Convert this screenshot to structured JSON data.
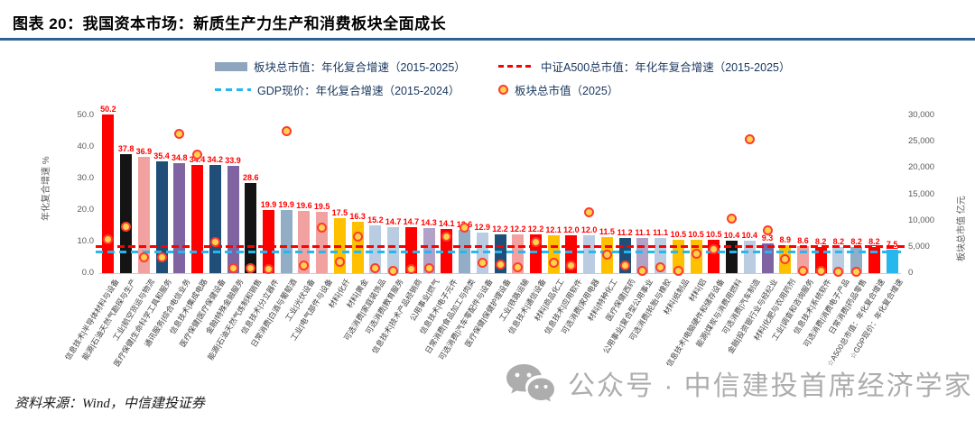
{
  "header": {
    "title": "图表 20：我国资本市场：新质生产力生产和消费板块全面成长"
  },
  "legend": {
    "items": [
      {
        "swatch": "bar",
        "label": "板块总市值：年化复合增速（2015-2025）"
      },
      {
        "swatch": "red-dash",
        "label": "中证A500总市值：年化年复合增速（2015-2025）"
      },
      {
        "swatch": "blue-dash",
        "label": "GDP现价：年化复合增速（2015-2024）"
      },
      {
        "swatch": "dot",
        "label": "板块总市值（2025）"
      }
    ]
  },
  "palette": {
    "信息技术": "#FE0000",
    "能源": "#141414",
    "工业": "#F2A1A1",
    "医疗保健": "#1F4E79",
    "通讯服务": "#8064A2",
    "金融": "#8064A2",
    "日常消费": "#92AEC6",
    "可选消费": "#B9CCE2",
    "材料": "#FFC000",
    "公用事业": "#B3A2C7",
    "A500": "#FE0000",
    "GDP": "#27B7EF"
  },
  "chart_data": {
    "type": "bar",
    "title": "我国资本市场：新质生产力生产和消费板块全面成长",
    "left_axis": {
      "label": "年化复合增速 %",
      "ticks": [
        "0.0",
        "10.0",
        "20.0",
        "30.0",
        "40.0",
        "50.0"
      ],
      "min": 0,
      "max": 50,
      "grid": false
    },
    "right_axis": {
      "label": "板块总市值 亿元",
      "ticks": [
        "0",
        "5,000",
        "10,000",
        "15,000",
        "20,000",
        "25,000",
        "30,000"
      ],
      "min": 0,
      "max": 30000
    },
    "reference_lines": [
      {
        "name": "中证A500总市值：年化年复合增速（2015-2025）",
        "value": 8.2,
        "color": "#FE0000",
        "style": "dashed"
      },
      {
        "name": "GDP现价：年化复合增速（2015-2024）",
        "value": 7.5,
        "color": "#27B7EF",
        "style": "dashed"
      }
    ],
    "series_note": "bars = 年化复合增速 %（2015-2025）；dots = 板块总市值（2025，亿元，图中未标数值，为按右轴估读值）",
    "bars": [
      {
        "label": "信息技术|半导体材料与设备",
        "growth": 50.2,
        "sector": "信息技术",
        "cap": 6500
      },
      {
        "label": "能源|石油天然气勘探与生产",
        "growth": 37.8,
        "sector": "能源",
        "cap": 8900
      },
      {
        "label": "工业|航空货运与物流",
        "growth": 36.9,
        "sector": "工业",
        "cap": 3000
      },
      {
        "label": "医疗保健|生命科学工具和服务",
        "growth": 35.4,
        "sector": "医疗保健",
        "cap": 3000
      },
      {
        "label": "通讯服务|综合电信业务",
        "growth": 34.8,
        "sector": "通讯服务",
        "cap": 26500
      },
      {
        "label": "信息技术|集成电路",
        "growth": 34.4,
        "sector": "信息技术",
        "cap": 22500
      },
      {
        "label": "医疗保健|医疗保健设备",
        "growth": 34.2,
        "sector": "医疗保健",
        "cap": 6000
      },
      {
        "label": "金融|特殊金融服务",
        "growth": 33.9,
        "sector": "金融",
        "cap": 1000
      },
      {
        "label": "能源|石油天然气炼制和销售",
        "growth": 28.6,
        "sector": "能源",
        "cap": 1000
      },
      {
        "label": "信息技术|分立器件",
        "growth": 19.9,
        "sector": "信息技术",
        "cap": 700
      },
      {
        "label": "日常消费|白酒与葡萄酒",
        "growth": 19.9,
        "sector": "日常消费",
        "cap": 27000
      },
      {
        "label": "工业|光伏设备",
        "growth": 19.6,
        "sector": "工业",
        "cap": 1400
      },
      {
        "label": "工业|电气部件与设备",
        "growth": 19.5,
        "sector": "工业",
        "cap": 8700
      },
      {
        "label": "材料|化纤",
        "growth": 17.5,
        "sector": "材料",
        "cap": 2200
      },
      {
        "label": "材料|黄金",
        "growth": 16.3,
        "sector": "材料",
        "cap": 7000
      },
      {
        "label": "可选消费|家庭装饰品",
        "growth": 15.2,
        "sector": "可选消费",
        "cap": 1000
      },
      {
        "label": "可选消费|教育服务",
        "growth": 14.7,
        "sector": "可选消费",
        "cap": 500
      },
      {
        "label": "信息技术|技术产品经销商",
        "growth": 14.7,
        "sector": "信息技术",
        "cap": 700
      },
      {
        "label": "公用事业|燃气",
        "growth": 14.3,
        "sector": "公用事业",
        "cap": 900
      },
      {
        "label": "信息技术|电子元件",
        "growth": 14.1,
        "sector": "信息技术",
        "cap": 7000
      },
      {
        "label": "日常消费|食品加工与肉类",
        "growth": 13.6,
        "sector": "日常消费",
        "cap": 8600
      },
      {
        "label": "可选消费|汽车零配件与设备",
        "growth": 12.9,
        "sector": "可选消费",
        "cap": 2000
      },
      {
        "label": "医疗保健|保健护理设备",
        "growth": 12.2,
        "sector": "医疗保健",
        "cap": 1700
      },
      {
        "label": "工业|铁路运输",
        "growth": 12.2,
        "sector": "工业",
        "cap": 1200
      },
      {
        "label": "信息技术|通信设备",
        "growth": 12.2,
        "sector": "信息技术",
        "cap": 6000
      },
      {
        "label": "材料|商品化工",
        "growth": 12.1,
        "sector": "材料",
        "cap": 2000
      },
      {
        "label": "信息技术|应用软件",
        "growth": 12.0,
        "sector": "信息技术",
        "cap": 1500
      },
      {
        "label": "可选消费|家用电器",
        "growth": 12.0,
        "sector": "可选消费",
        "cap": 11600
      },
      {
        "label": "材料|特种化工",
        "growth": 11.5,
        "sector": "材料",
        "cap": 3600
      },
      {
        "label": "医疗保健|西药",
        "growth": 11.2,
        "sector": "医疗保健",
        "cap": 1500
      },
      {
        "label": "公用事业|复合型公用事业",
        "growth": 11.1,
        "sector": "公用事业",
        "cap": 400
      },
      {
        "label": "可选消费|轮胎与橡胶",
        "growth": 11.1,
        "sector": "可选消费",
        "cap": 1100
      },
      {
        "label": "材料|纸制品",
        "growth": 10.5,
        "sector": "材料",
        "cap": 500
      },
      {
        "label": "材料|铝",
        "growth": 10.5,
        "sector": "材料",
        "cap": 3700
      },
      {
        "label": "信息技术|电脑硬件和储存设备",
        "growth": 10.5,
        "sector": "信息技术",
        "cap": 4600
      },
      {
        "label": "能源|煤炭与消费用燃料",
        "growth": 10.4,
        "sector": "能源",
        "cap": 10300
      },
      {
        "label": "可选消费|汽车制造",
        "growth": 10.4,
        "sector": "可选消费",
        "cap": 25400
      },
      {
        "label": "金融|投资银行业与经纪业",
        "growth": 9.3,
        "sector": "金融",
        "cap": 8200
      },
      {
        "label": "材料|化肥与农用药剂",
        "growth": 8.9,
        "sector": "材料",
        "cap": 2700
      },
      {
        "label": "工业|调查和咨询服务",
        "growth": 8.6,
        "sector": "工业",
        "cap": 400
      },
      {
        "label": "信息技术|系统软件",
        "growth": 8.2,
        "sector": "信息技术",
        "cap": 400
      },
      {
        "label": "可选消费|消费电子产品",
        "growth": 8.2,
        "sector": "可选消费",
        "cap": 200
      },
      {
        "label": "日常消费|药品零售",
        "growth": 8.2,
        "sector": "日常消费",
        "cap": 200
      },
      {
        "label": "☆A500总市值：年化复合增速",
        "growth": 8.2,
        "sector": "A500",
        "cap": null,
        "underline": true
      },
      {
        "label": "☆GDP现价：年化复合增速",
        "growth": 7.5,
        "sector": "GDP",
        "cap": null,
        "underline": true
      }
    ]
  },
  "footer": {
    "source": "资料来源：Wind，中信建投证券"
  },
  "watermark": {
    "text": "公众号 · 中信建投首席经济学家"
  }
}
